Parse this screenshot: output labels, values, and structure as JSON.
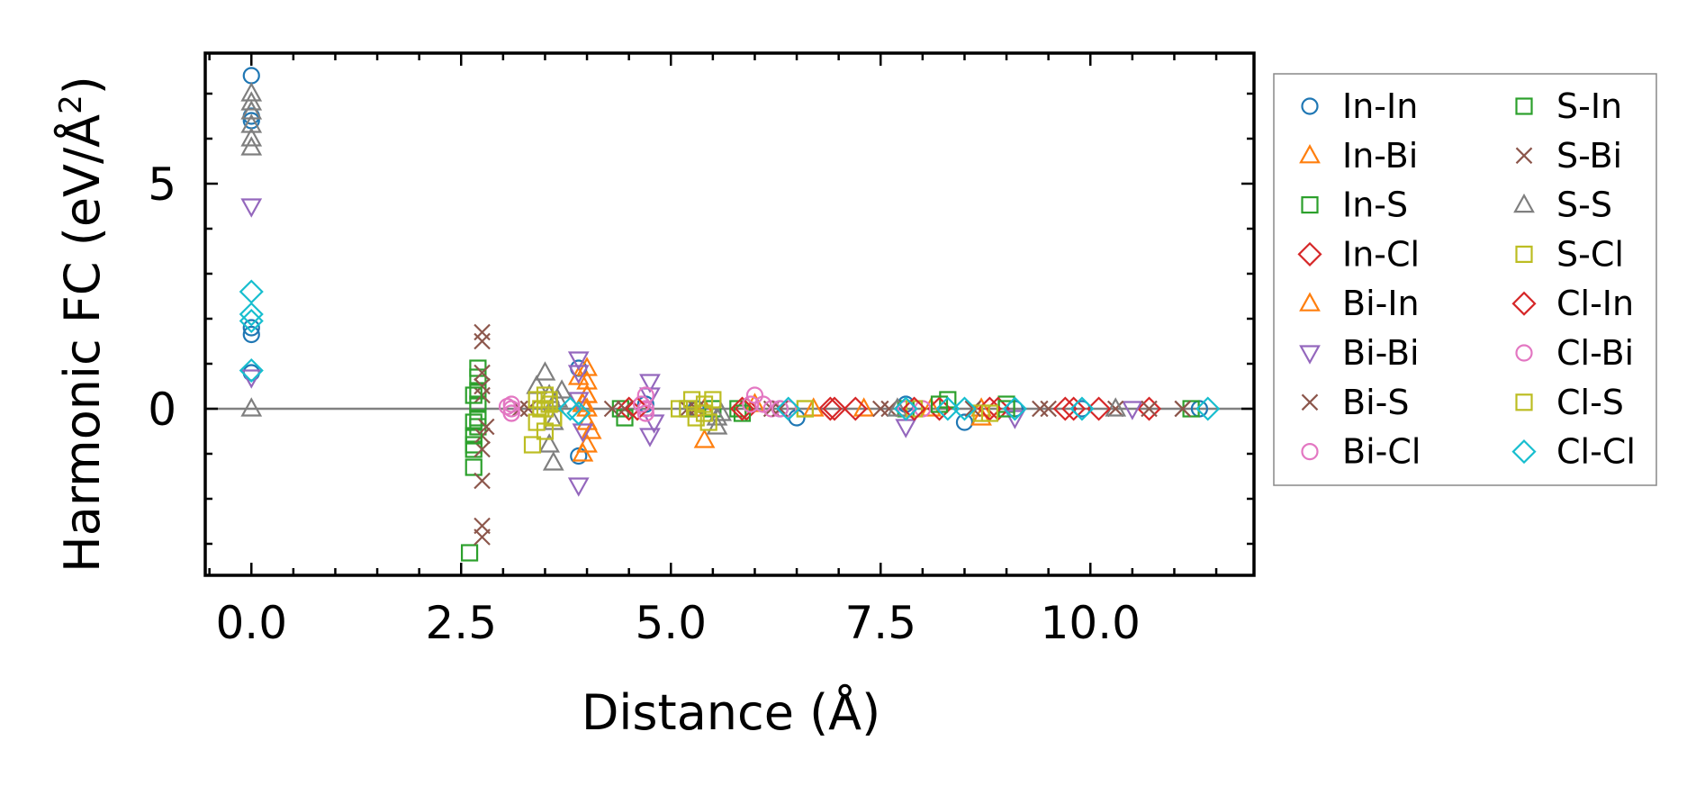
{
  "chart_data": {
    "type": "scatter",
    "title": "",
    "xlabel": "Distance (Å)",
    "ylabel": "Harmonic FC (eV/Å²)",
    "ylabel_parts": {
      "main": "Harmonic FC (eV/Å",
      "sup": "2",
      "close": ")"
    },
    "xlim": [
      -0.55,
      11.95
    ],
    "ylim": [
      -3.7,
      7.9
    ],
    "xticks": [
      0.0,
      2.5,
      5.0,
      7.5,
      10.0
    ],
    "xtick_labels": [
      "0.0",
      "2.5",
      "5.0",
      "7.5",
      "10.0"
    ],
    "yticks": [
      0,
      5
    ],
    "ytick_labels": [
      "0",
      "5"
    ],
    "zero_line": true,
    "grid": false,
    "legend_position": "outside-right",
    "series": [
      {
        "name": "In-In",
        "marker": "circle",
        "color": "#1f77b4",
        "x": [
          0,
          0,
          0,
          0,
          0,
          0,
          3.9,
          3.9,
          4.7,
          5.3,
          6.3,
          6.5,
          7.8,
          8.5,
          9.1,
          9.9,
          11.3
        ],
        "y": [
          7.4,
          6.4,
          6.5,
          1.65,
          1.8,
          0.8,
          0.9,
          -1.05,
          0.1,
          0,
          0,
          -0.2,
          0.1,
          -0.3,
          0,
          0,
          0
        ]
      },
      {
        "name": "In-Bi",
        "marker": "triangle-up",
        "color": "#ff7f0e",
        "x": [
          4.0,
          4.0,
          4.0,
          4.0,
          4.0,
          3.95,
          3.95,
          5.4,
          6.0,
          7.3,
          8.1,
          8.7
        ],
        "y": [
          0.9,
          0.6,
          0.3,
          -0.3,
          -0.8,
          -1.0,
          0.1,
          -0.7,
          0.1,
          0,
          0,
          0
        ]
      },
      {
        "name": "In-S",
        "marker": "square",
        "color": "#2ca02c",
        "x": [
          2.6,
          2.65,
          2.65,
          2.65,
          2.7,
          2.7,
          2.7,
          2.7,
          2.7,
          2.65,
          4.4,
          5.2,
          5.8,
          7.8,
          8.3,
          9.0,
          11.2
        ],
        "y": [
          -3.2,
          -1.3,
          -0.8,
          -0.3,
          0.9,
          0.7,
          0.4,
          0.1,
          -0.4,
          -0.9,
          0,
          0,
          0,
          0,
          0.2,
          0.1,
          0
        ]
      },
      {
        "name": "In-Cl",
        "marker": "diamond",
        "color": "#d62728",
        "x": [
          4.5,
          5.9,
          6.9,
          7.2,
          8.2,
          8.9,
          9.8,
          10.7
        ],
        "y": [
          0,
          0,
          0,
          0,
          0,
          0,
          0,
          0
        ]
      },
      {
        "name": "Bi-In",
        "marker": "triangle-up",
        "color": "#ff7f0e",
        "x": [
          3.9,
          4.0,
          4.05,
          4.0,
          5.4,
          6.7,
          8.7
        ],
        "y": [
          0.7,
          0.3,
          -0.5,
          0.0,
          0,
          0,
          -0.2
        ]
      },
      {
        "name": "Bi-Bi",
        "marker": "triangle-down",
        "color": "#9467bd",
        "x": [
          0,
          0,
          3.9,
          3.9,
          3.9,
          3.95,
          3.9,
          4.75,
          4.75,
          4.8,
          4.75,
          7.8,
          9.1,
          10.5
        ],
        "y": [
          4.5,
          0.7,
          1.1,
          0.8,
          0.2,
          -0.5,
          -1.7,
          0.6,
          0.3,
          -0.3,
          -0.6,
          -0.4,
          -0.2,
          0
        ]
      },
      {
        "name": "Bi-S",
        "marker": "x",
        "color": "#8c564b",
        "x": [
          2.75,
          2.75,
          2.75,
          2.75,
          2.75,
          2.75,
          2.75,
          2.75,
          2.75,
          3.2,
          4.3,
          5.3,
          6.2,
          7.5,
          8.6,
          9.4,
          10.7,
          11.1
        ],
        "y": [
          1.7,
          1.5,
          0.5,
          0.3,
          -0.6,
          -0.9,
          -1.6,
          -2.6,
          -2.85,
          0,
          0,
          0,
          0,
          0,
          0,
          0,
          0,
          0
        ]
      },
      {
        "name": "Bi-Cl",
        "marker": "circle",
        "color": "#e377c2",
        "x": [
          3.1,
          3.1,
          3.1,
          4.7,
          4.7,
          4.7,
          6.0,
          6.1,
          6.2,
          6.4,
          7.8,
          8.0
        ],
        "y": [
          0.1,
          0,
          -0.1,
          0.3,
          0,
          -0.1,
          0.3,
          0.1,
          0,
          0,
          0,
          0
        ]
      },
      {
        "name": "S-In",
        "marker": "square",
        "color": "#2ca02c",
        "x": [
          2.65,
          2.7,
          2.65,
          4.45,
          5.5,
          5.85,
          8.2,
          9.0
        ],
        "y": [
          0.3,
          -0.2,
          -0.6,
          -0.2,
          0,
          -0.1,
          0.1,
          0
        ]
      },
      {
        "name": "S-Bi",
        "marker": "x",
        "color": "#8c564b",
        "x": [
          2.75,
          2.8,
          3.3,
          4.45,
          5.2,
          6.3,
          7.6,
          9.5,
          10.3,
          11.1
        ],
        "y": [
          0.8,
          -0.4,
          0,
          0,
          0,
          0,
          0,
          0,
          0,
          0
        ]
      },
      {
        "name": "S-S",
        "marker": "triangle-up",
        "color": "#7f7f7f",
        "x": [
          0,
          0,
          0,
          0,
          0,
          0,
          0,
          3.4,
          3.5,
          3.55,
          3.6,
          3.55,
          3.6,
          3.6,
          3.65,
          3.7,
          5.55,
          5.55,
          5.6,
          7.7,
          10.3
        ],
        "y": [
          7.0,
          6.8,
          6.6,
          6.3,
          6.0,
          5.8,
          0,
          0.5,
          0.8,
          0.3,
          -0.3,
          -0.8,
          -1.2,
          0.1,
          0.2,
          0.4,
          -0.2,
          -0.4,
          -0.1,
          0,
          0
        ]
      },
      {
        "name": "S-Cl",
        "marker": "square",
        "color": "#bcbd22",
        "x": [
          3.35,
          3.4,
          3.45,
          3.5,
          3.55,
          3.6,
          3.5,
          3.4,
          5.1,
          5.25,
          5.3,
          5.4,
          5.45,
          5.5,
          6.6,
          7.9,
          8.7
        ],
        "y": [
          -0.8,
          -0.3,
          0,
          0.3,
          0.1,
          -0.2,
          -0.5,
          0.2,
          0,
          0.2,
          -0.2,
          0.1,
          -0.3,
          0.2,
          0,
          0,
          -0.1
        ]
      },
      {
        "name": "Cl-In",
        "marker": "diamond",
        "color": "#d62728",
        "x": [
          4.6,
          5.85,
          6.95,
          7.9,
          8.8,
          9.7,
          10.1
        ],
        "y": [
          0,
          0,
          0,
          0,
          0,
          0,
          0
        ]
      },
      {
        "name": "Cl-Bi",
        "marker": "circle",
        "color": "#e377c2",
        "x": [
          3.05,
          3.1,
          4.65,
          4.7,
          5.95,
          6.3
        ],
        "y": [
          0.05,
          -0.1,
          0.1,
          -0.1,
          0.1,
          0
        ]
      },
      {
        "name": "Cl-S",
        "marker": "square",
        "color": "#bcbd22",
        "x": [
          3.5,
          3.55,
          3.6,
          5.2,
          5.4,
          6.6,
          8.8
        ],
        "y": [
          0,
          0.2,
          -0.2,
          0,
          -0.1,
          0,
          -0.1
        ]
      },
      {
        "name": "Cl-Cl",
        "marker": "diamond",
        "color": "#17becf",
        "x": [
          0,
          0,
          0,
          0,
          3.8,
          3.9,
          6.4,
          7.8,
          8.3,
          8.5,
          9.1,
          9.9,
          11.4
        ],
        "y": [
          2.6,
          2.1,
          1.95,
          0.85,
          0,
          -0.1,
          0,
          0,
          0,
          0,
          0,
          0,
          0
        ]
      }
    ]
  }
}
